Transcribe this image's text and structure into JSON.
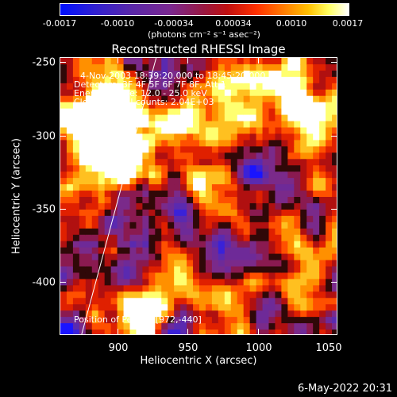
{
  "colorbar": {
    "ticks": [
      "-0.0017",
      "-0.0010",
      "-0.00034",
      "0.00034",
      "0.0010",
      "0.0017"
    ],
    "units_line": "(photons cm⁻² s⁻¹ asec⁻²)"
  },
  "plot": {
    "title": "Reconstructed RHESSI Image",
    "info_lines": [
      "4-Nov-2003 18:39:20.000 to 18:45:20.000",
      "Detectors: 3F 4F 5F 6F 7F 8F, Att 1",
      "Energy Range: 12.0 - 25.0 keV",
      "Clean     Total counts: 2.04E+03"
    ],
    "peak_label": "Position of Peak = [972,-440]",
    "xlabel": "Heliocentric X (arcsec)",
    "ylabel": "Heliocentric Y (arcsec)",
    "xticks": [
      "900",
      "950",
      "1000",
      "1050"
    ],
    "yticks": [
      "-250",
      "-300",
      "-350",
      "-400"
    ]
  },
  "footer": {
    "date": "6-May-2022 20:31"
  },
  "colors": {
    "background": "#000000",
    "axis": "#ffffff",
    "colormap": [
      "#0000ff",
      "#5a2db0",
      "#7a2a8a",
      "#b0102a",
      "#ff3000",
      "#ff9000",
      "#ffff60",
      "#ffffff"
    ]
  }
}
